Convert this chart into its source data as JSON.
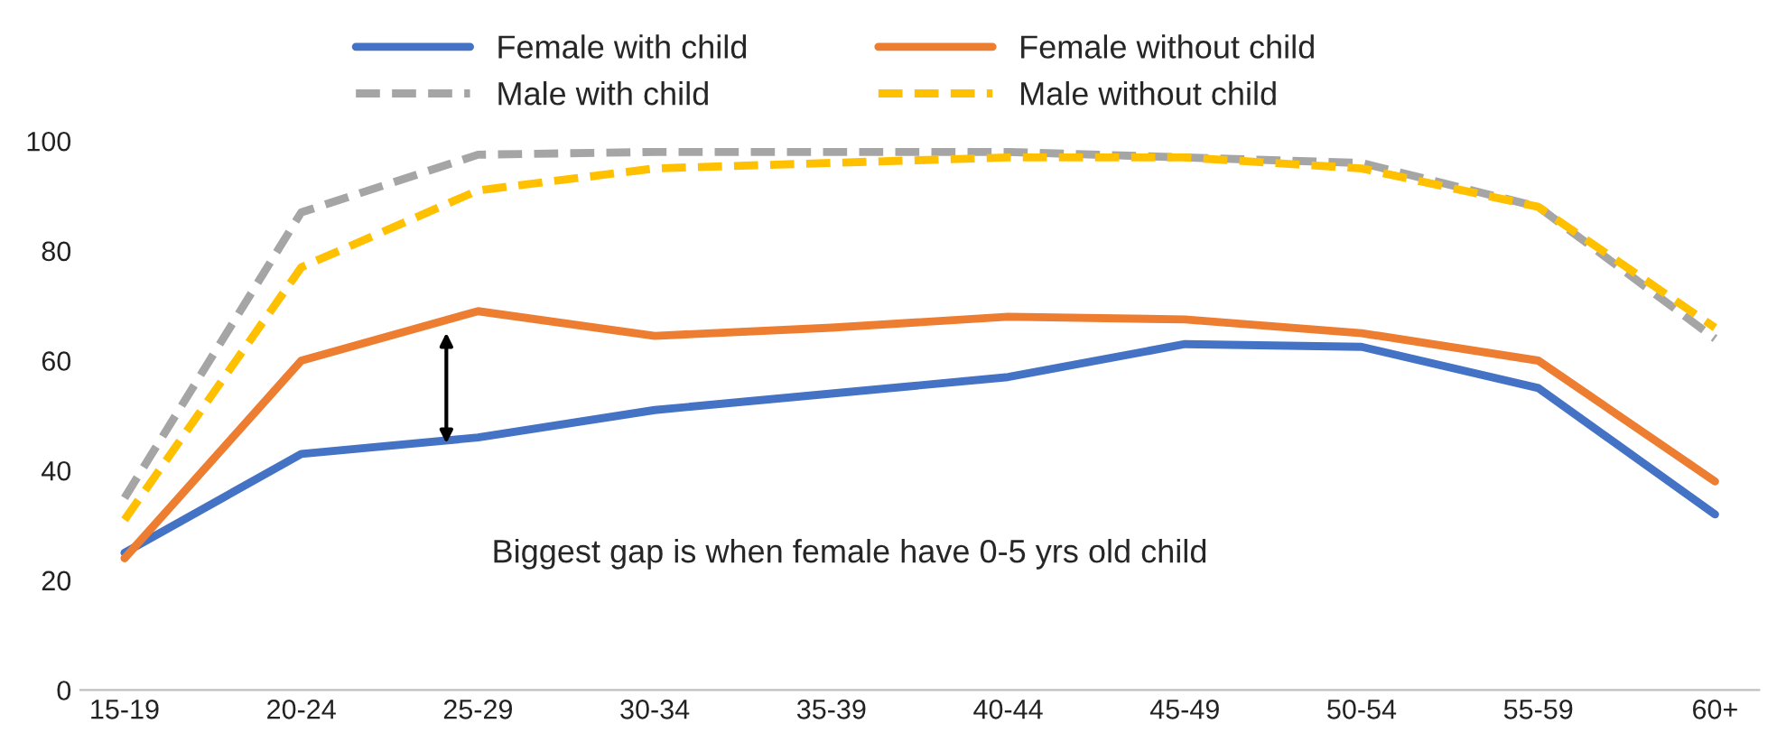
{
  "chart_data": {
    "type": "line",
    "categories": [
      "15-19",
      "20-24",
      "25-29",
      "30-34",
      "35-39",
      "40-44",
      "45-49",
      "50-54",
      "55-59",
      "60+"
    ],
    "series": [
      {
        "name": "Female with child",
        "color": "#4472c4",
        "line_style": "solid",
        "values": [
          25,
          43,
          46,
          51,
          54,
          57,
          63,
          62.5,
          55,
          32
        ]
      },
      {
        "name": "Female without child",
        "color": "#ed7d31",
        "line_style": "solid",
        "values": [
          24,
          60,
          69,
          64.5,
          66,
          68,
          67.5,
          65,
          60,
          38
        ]
      },
      {
        "name": "Male with child",
        "color": "#a5a5a5",
        "line_style": "dashed",
        "values": [
          35,
          87,
          97.5,
          98,
          98,
          98,
          97,
          96,
          88,
          64
        ]
      },
      {
        "name": "Male without child",
        "color": "#ffc000",
        "line_style": "dashed",
        "values": [
          31,
          77,
          91,
          95,
          96,
          97,
          97,
          95,
          88,
          66
        ]
      }
    ],
    "ylim": [
      0,
      100
    ],
    "yticks": [
      0,
      20,
      40,
      60,
      80,
      100
    ],
    "grid": false,
    "legend": "top",
    "marker": "none",
    "annotations": [
      "Biggest gap is when female have 0-5 yrs old child"
    ]
  }
}
